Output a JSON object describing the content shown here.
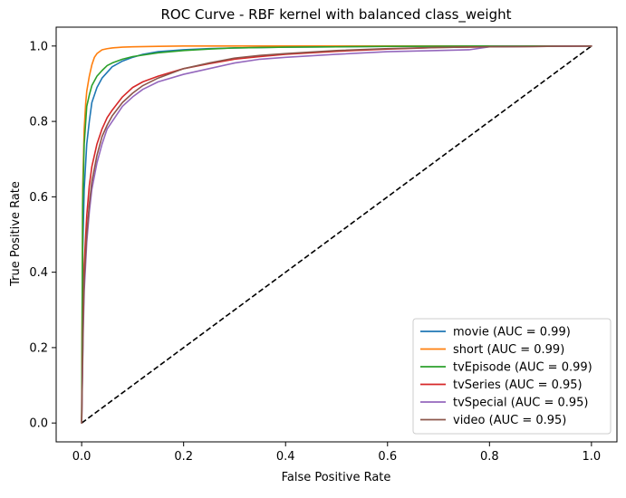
{
  "chart_data": {
    "type": "line",
    "title": "ROC Curve - RBF kernel with balanced class_weight",
    "xlabel": "False Positive Rate",
    "ylabel": "True Positive Rate",
    "xlim": [
      -0.05,
      1.05
    ],
    "ylim": [
      -0.05,
      1.05
    ],
    "xticks": [
      "0.0",
      "0.2",
      "0.4",
      "0.6",
      "0.8",
      "1.0"
    ],
    "yticks": [
      "0.0",
      "0.2",
      "0.4",
      "0.6",
      "0.8",
      "1.0"
    ],
    "grid": false,
    "legend_position": "bottom-right",
    "series": [
      {
        "name": "movie (AUC = 0.99)",
        "color": "#1f77b4",
        "x": [
          0,
          0.002,
          0.005,
          0.01,
          0.015,
          0.02,
          0.03,
          0.04,
          0.05,
          0.06,
          0.08,
          0.1,
          0.12,
          0.15,
          0.2,
          0.25,
          0.3,
          0.4,
          0.5,
          0.6,
          0.8,
          1.0
        ],
        "y": [
          0,
          0.45,
          0.62,
          0.74,
          0.8,
          0.85,
          0.89,
          0.915,
          0.93,
          0.945,
          0.96,
          0.97,
          0.978,
          0.985,
          0.99,
          0.993,
          0.995,
          0.997,
          0.998,
          0.999,
          1.0,
          1.0
        ]
      },
      {
        "name": "short (AUC = 0.99)",
        "color": "#ff7f0e",
        "x": [
          0,
          0.002,
          0.005,
          0.008,
          0.01,
          0.015,
          0.02,
          0.025,
          0.03,
          0.04,
          0.05,
          0.06,
          0.08,
          0.1,
          0.15,
          0.2,
          0.3,
          0.5,
          1.0
        ],
        "y": [
          0,
          0.62,
          0.78,
          0.85,
          0.88,
          0.92,
          0.95,
          0.97,
          0.98,
          0.99,
          0.993,
          0.995,
          0.997,
          0.998,
          0.999,
          1.0,
          1.0,
          1.0,
          1.0
        ]
      },
      {
        "name": "tvEpisode (AUC = 0.99)",
        "color": "#2ca02c",
        "x": [
          0,
          0.002,
          0.005,
          0.01,
          0.015,
          0.02,
          0.03,
          0.04,
          0.05,
          0.06,
          0.08,
          0.1,
          0.15,
          0.2,
          0.25,
          0.3,
          0.4,
          0.5,
          0.6,
          0.8,
          1.0
        ],
        "y": [
          0,
          0.58,
          0.74,
          0.84,
          0.87,
          0.895,
          0.92,
          0.935,
          0.948,
          0.955,
          0.965,
          0.972,
          0.982,
          0.988,
          0.992,
          0.995,
          0.997,
          0.998,
          0.999,
          1.0,
          1.0
        ]
      },
      {
        "name": "tvSeries (AUC = 0.95)",
        "color": "#d62728",
        "x": [
          0,
          0.003,
          0.005,
          0.01,
          0.015,
          0.02,
          0.03,
          0.04,
          0.05,
          0.06,
          0.08,
          0.1,
          0.12,
          0.15,
          0.2,
          0.25,
          0.3,
          0.35,
          0.4,
          0.5,
          0.6,
          0.7,
          0.8,
          1.0
        ],
        "y": [
          0,
          0.3,
          0.42,
          0.55,
          0.63,
          0.68,
          0.74,
          0.78,
          0.81,
          0.83,
          0.865,
          0.89,
          0.905,
          0.92,
          0.94,
          0.953,
          0.965,
          0.972,
          0.978,
          0.986,
          0.992,
          0.996,
          0.998,
          1.0
        ]
      },
      {
        "name": "tvSpecial (AUC = 0.95)",
        "color": "#9467bd",
        "x": [
          0,
          0.003,
          0.005,
          0.01,
          0.015,
          0.02,
          0.03,
          0.04,
          0.05,
          0.06,
          0.08,
          0.1,
          0.12,
          0.15,
          0.2,
          0.25,
          0.3,
          0.35,
          0.4,
          0.5,
          0.6,
          0.76,
          0.8,
          1.0
        ],
        "y": [
          0,
          0.24,
          0.35,
          0.48,
          0.56,
          0.62,
          0.69,
          0.74,
          0.78,
          0.8,
          0.84,
          0.865,
          0.885,
          0.905,
          0.925,
          0.94,
          0.955,
          0.965,
          0.97,
          0.978,
          0.985,
          0.99,
          0.998,
          1.0
        ]
      },
      {
        "name": "video (AUC = 0.95)",
        "color": "#8c564b",
        "x": [
          0,
          0.003,
          0.005,
          0.01,
          0.015,
          0.02,
          0.03,
          0.04,
          0.05,
          0.06,
          0.08,
          0.1,
          0.12,
          0.15,
          0.2,
          0.25,
          0.3,
          0.35,
          0.4,
          0.5,
          0.6,
          0.7,
          0.8,
          1.0
        ],
        "y": [
          0,
          0.27,
          0.38,
          0.5,
          0.58,
          0.64,
          0.71,
          0.76,
          0.79,
          0.815,
          0.85,
          0.875,
          0.895,
          0.915,
          0.94,
          0.955,
          0.968,
          0.975,
          0.98,
          0.988,
          0.993,
          0.996,
          0.998,
          1.0
        ]
      }
    ],
    "reference_line": {
      "x": [
        0,
        1
      ],
      "y": [
        0,
        1
      ],
      "color": "#000000",
      "style": "dashed"
    }
  }
}
